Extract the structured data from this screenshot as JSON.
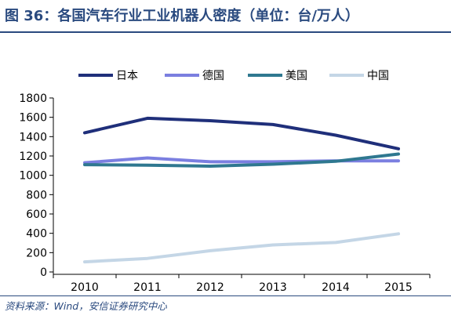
{
  "figure": {
    "title": "图 36：各国汽车行业工业机器人密度（单位：台/万人）",
    "source": "资料来源：Wind，安信证券研究中心"
  },
  "chart_data": {
    "type": "line",
    "title": "",
    "xlabel": "",
    "ylabel": "",
    "categories": [
      "2010",
      "2011",
      "2012",
      "2013",
      "2014",
      "2015"
    ],
    "ylim": [
      0,
      1800
    ],
    "yticks": [
      0,
      200,
      400,
      600,
      800,
      1000,
      1200,
      1400,
      1600,
      1800
    ],
    "grid": false,
    "legend_position": "top",
    "series": [
      {
        "name": "日本",
        "color": "#1f2f7a",
        "values": [
          1440,
          1590,
          1565,
          1525,
          1415,
          1275
        ]
      },
      {
        "name": "德国",
        "color": "#7b7fe0",
        "values": [
          1130,
          1180,
          1140,
          1140,
          1150,
          1150
        ]
      },
      {
        "name": "美国",
        "color": "#2f7890",
        "values": [
          1110,
          1105,
          1095,
          1115,
          1145,
          1220
        ]
      },
      {
        "name": "中国",
        "color": "#c4d6e6",
        "values": [
          105,
          140,
          220,
          280,
          305,
          395
        ]
      }
    ]
  }
}
